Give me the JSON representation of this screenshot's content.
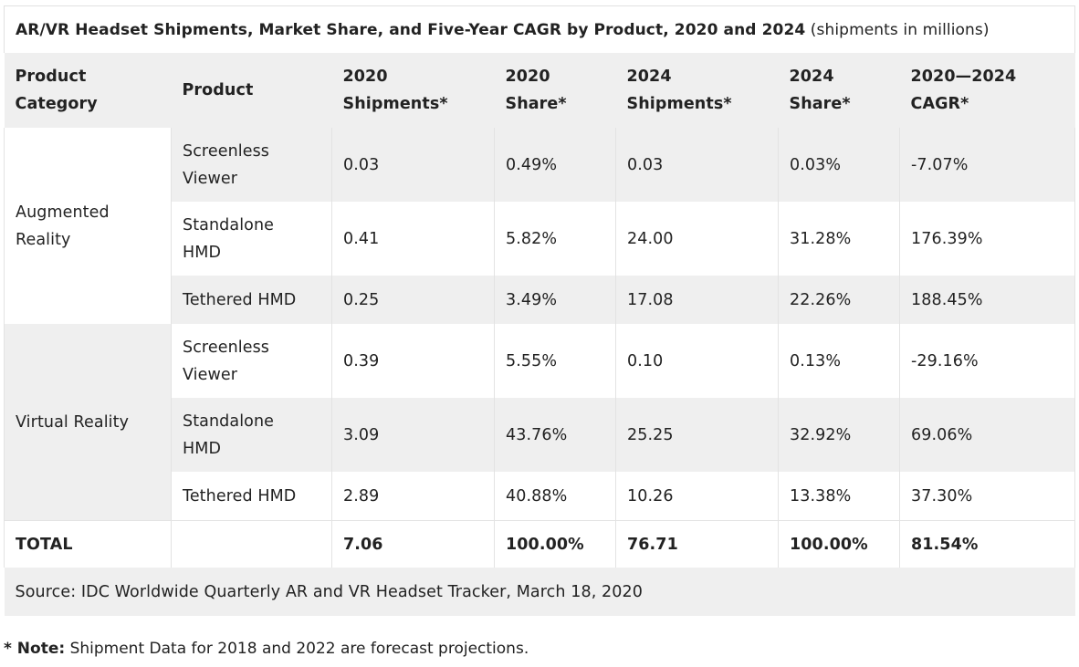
{
  "title": {
    "bold": "AR/VR Headset Shipments, Market Share, and Five-Year CAGR by Product, 2020 and 2024",
    "normal": " (shipments in millions)"
  },
  "headers": [
    [
      "Product",
      "Category"
    ],
    [
      "Product"
    ],
    [
      "2020",
      "Shipments*"
    ],
    [
      "2020",
      "Share*"
    ],
    [
      "2024",
      "Shipments*"
    ],
    [
      "2024",
      "Share*"
    ],
    [
      "2020—2024",
      "CAGR*"
    ]
  ],
  "groups": [
    {
      "category": [
        "Augmented",
        "Reality"
      ],
      "rows": [
        {
          "product": [
            "Screenless",
            "Viewer"
          ],
          "s2020": "0.03",
          "sh2020": "0.49%",
          "s2024": "0.03",
          "sh2024": "0.03%",
          "cagr": "-7.07%"
        },
        {
          "product": [
            "Standalone",
            "HMD"
          ],
          "s2020": "0.41",
          "sh2020": "5.82%",
          "s2024": "24.00",
          "sh2024": "31.28%",
          "cagr": "176.39%"
        },
        {
          "product": [
            "Tethered HMD"
          ],
          "s2020": "0.25",
          "sh2020": "3.49%",
          "s2024": "17.08",
          "sh2024": "22.26%",
          "cagr": "188.45%"
        }
      ]
    },
    {
      "category": [
        "Virtual Reality"
      ],
      "rows": [
        {
          "product": [
            "Screenless",
            "Viewer"
          ],
          "s2020": "0.39",
          "sh2020": "5.55%",
          "s2024": "0.10",
          "sh2024": "0.13%",
          "cagr": "-29.16%"
        },
        {
          "product": [
            "Standalone",
            "HMD"
          ],
          "s2020": "3.09",
          "sh2020": "43.76%",
          "s2024": "25.25",
          "sh2024": "32.92%",
          "cagr": "69.06%"
        },
        {
          "product": [
            "Tethered HMD"
          ],
          "s2020": "2.89",
          "sh2020": "40.88%",
          "s2024": "10.26",
          "sh2024": "13.38%",
          "cagr": "37.30%"
        }
      ]
    }
  ],
  "total": {
    "label": "TOTAL",
    "product": "",
    "s2020": "7.06",
    "sh2020": "100.00%",
    "s2024": "76.71",
    "sh2024": "100.00%",
    "cagr": "81.54%"
  },
  "source": "Source: IDC Worldwide Quarterly AR and VR Headset Tracker, March 18, 2020",
  "note": {
    "prefix": "* Note:",
    "text": " Shipment Data for 2018 and 2022 are forecast projections."
  }
}
